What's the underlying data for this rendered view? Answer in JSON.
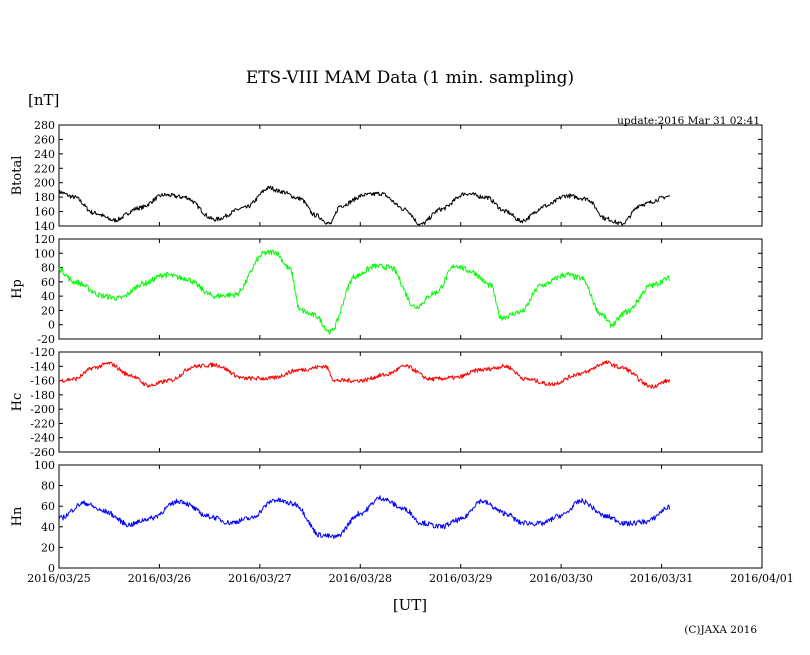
{
  "chart_data": {
    "type": "line",
    "title": "ETS-VIII MAM Data (1 min. sampling)",
    "unit_label": "[nT]",
    "update": "update:2016 Mar 31 02:41",
    "xlabel": "[UT]",
    "copyright": "(C)JAXA 2016",
    "x_ticks": [
      "2016/03/25",
      "2016/03/26",
      "2016/03/27",
      "2016/03/28",
      "2016/03/29",
      "2016/03/30",
      "2016/03/31",
      "2016/04/01"
    ],
    "x_range_days": [
      0,
      7
    ],
    "data_end_day": 6.08,
    "panels": [
      {
        "name": "Btotal",
        "color": "#000000",
        "ylim": [
          140,
          280
        ],
        "yticks": [
          "140",
          "160",
          "180",
          "200",
          "220",
          "240",
          "260",
          "280"
        ],
        "noise": 3,
        "keypoints": [
          [
            0,
            187
          ],
          [
            0.15,
            180
          ],
          [
            0.35,
            158
          ],
          [
            0.55,
            148
          ],
          [
            0.8,
            165
          ],
          [
            1.05,
            183
          ],
          [
            1.25,
            180
          ],
          [
            1.55,
            149
          ],
          [
            1.85,
            165
          ],
          [
            2.1,
            193
          ],
          [
            2.2,
            188
          ],
          [
            2.4,
            178
          ],
          [
            2.55,
            155
          ],
          [
            2.7,
            143
          ],
          [
            2.8,
            168
          ],
          [
            3.05,
            183
          ],
          [
            3.2,
            185
          ],
          [
            3.45,
            163
          ],
          [
            3.6,
            142
          ],
          [
            3.8,
            163
          ],
          [
            4.05,
            185
          ],
          [
            4.25,
            180
          ],
          [
            4.45,
            160
          ],
          [
            4.6,
            147
          ],
          [
            4.85,
            168
          ],
          [
            5.05,
            182
          ],
          [
            5.25,
            178
          ],
          [
            5.45,
            150
          ],
          [
            5.6,
            143
          ],
          [
            5.8,
            170
          ],
          [
            6.08,
            181
          ]
        ]
      },
      {
        "name": "Hp",
        "color": "#00ff00",
        "ylim": [
          -20,
          120
        ],
        "yticks": [
          "-20",
          "0",
          "20",
          "40",
          "60",
          "80",
          "100",
          "120"
        ],
        "noise": 4,
        "keypoints": [
          [
            0,
            78
          ],
          [
            0.15,
            60
          ],
          [
            0.45,
            40
          ],
          [
            0.6,
            37
          ],
          [
            0.85,
            58
          ],
          [
            1.05,
            70
          ],
          [
            1.25,
            65
          ],
          [
            1.55,
            40
          ],
          [
            1.75,
            42
          ],
          [
            2.05,
            100
          ],
          [
            2.15,
            102
          ],
          [
            2.3,
            78
          ],
          [
            2.4,
            20
          ],
          [
            2.55,
            13
          ],
          [
            2.7,
            -10
          ],
          [
            2.95,
            68
          ],
          [
            3.15,
            82
          ],
          [
            3.3,
            80
          ],
          [
            3.55,
            25
          ],
          [
            3.75,
            45
          ],
          [
            3.95,
            83
          ],
          [
            4.1,
            75
          ],
          [
            4.3,
            55
          ],
          [
            4.4,
            10
          ],
          [
            4.6,
            18
          ],
          [
            4.8,
            55
          ],
          [
            5.05,
            70
          ],
          [
            5.2,
            65
          ],
          [
            5.4,
            15
          ],
          [
            5.5,
            0
          ],
          [
            5.65,
            18
          ],
          [
            5.9,
            55
          ],
          [
            6.08,
            65
          ]
        ]
      },
      {
        "name": "Hc",
        "color": "#ff0000",
        "ylim": [
          -260,
          -120
        ],
        "yticks": [
          "-260",
          "-240",
          "-220",
          "-200",
          "-180",
          "-160",
          "-140",
          "-120"
        ],
        "noise": 3,
        "keypoints": [
          [
            0,
            -160
          ],
          [
            0.15,
            -158
          ],
          [
            0.35,
            -142
          ],
          [
            0.5,
            -136
          ],
          [
            0.7,
            -152
          ],
          [
            0.9,
            -167
          ],
          [
            1.1,
            -160
          ],
          [
            1.35,
            -140
          ],
          [
            1.55,
            -138
          ],
          [
            1.85,
            -157
          ],
          [
            2.1,
            -157
          ],
          [
            2.4,
            -145
          ],
          [
            2.65,
            -140
          ],
          [
            2.75,
            -160
          ],
          [
            3.0,
            -160
          ],
          [
            3.25,
            -152
          ],
          [
            3.45,
            -140
          ],
          [
            3.7,
            -158
          ],
          [
            3.95,
            -156
          ],
          [
            4.2,
            -145
          ],
          [
            4.45,
            -140
          ],
          [
            4.65,
            -158
          ],
          [
            4.9,
            -165
          ],
          [
            5.2,
            -150
          ],
          [
            5.45,
            -135
          ],
          [
            5.6,
            -142
          ],
          [
            5.9,
            -168
          ],
          [
            6.08,
            -160
          ]
        ]
      },
      {
        "name": "Hn",
        "color": "#0000ff",
        "ylim": [
          0,
          100
        ],
        "yticks": [
          "0",
          "20",
          "40",
          "60",
          "80",
          "100"
        ],
        "noise": 2.5,
        "keypoints": [
          [
            0,
            48
          ],
          [
            0.25,
            63
          ],
          [
            0.45,
            55
          ],
          [
            0.7,
            42
          ],
          [
            0.9,
            48
          ],
          [
            1.2,
            65
          ],
          [
            1.5,
            50
          ],
          [
            1.7,
            44
          ],
          [
            1.9,
            48
          ],
          [
            2.15,
            66
          ],
          [
            2.35,
            62
          ],
          [
            2.6,
            32
          ],
          [
            2.75,
            30
          ],
          [
            3.0,
            53
          ],
          [
            3.2,
            68
          ],
          [
            3.45,
            57
          ],
          [
            3.6,
            44
          ],
          [
            3.8,
            40
          ],
          [
            4.0,
            47
          ],
          [
            4.2,
            65
          ],
          [
            4.45,
            53
          ],
          [
            4.6,
            44
          ],
          [
            4.8,
            43
          ],
          [
            5.0,
            51
          ],
          [
            5.2,
            65
          ],
          [
            5.45,
            50
          ],
          [
            5.65,
            43
          ],
          [
            5.85,
            45
          ],
          [
            6.08,
            59
          ]
        ]
      }
    ]
  }
}
